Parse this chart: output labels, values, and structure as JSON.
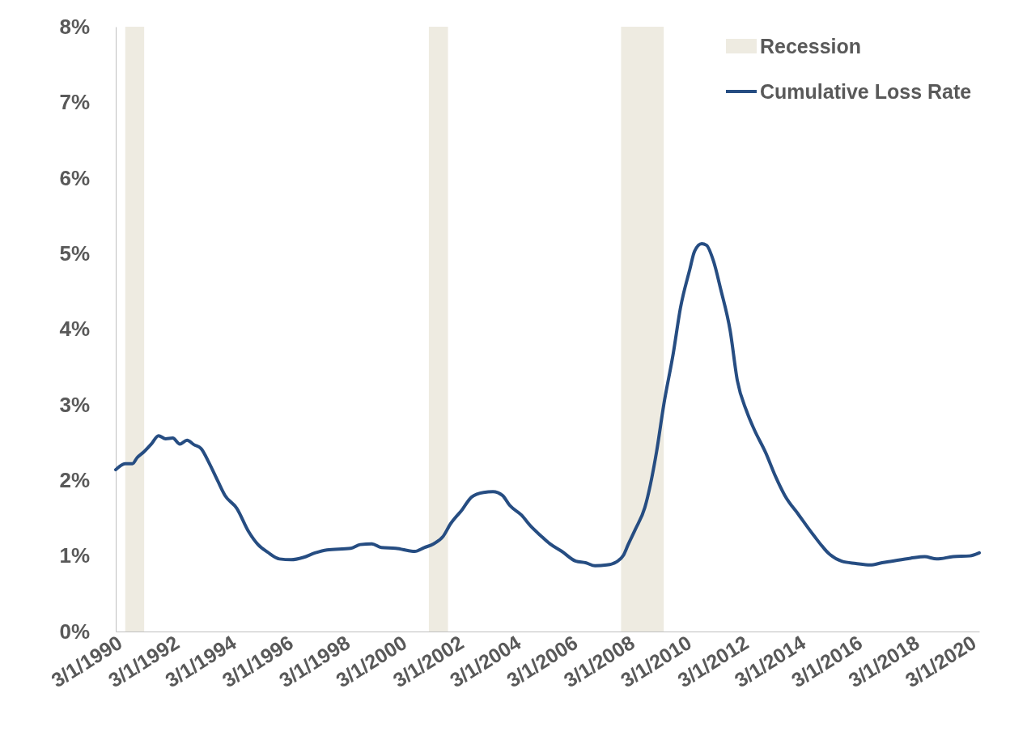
{
  "chart_data": {
    "type": "line",
    "legend": "top right",
    "grid": false,
    "xlim": [
      "1990-03-01",
      "2020-07-01"
    ],
    "xticks": [
      {
        "value": "1990-03-01",
        "label": "3/1/1990"
      },
      {
        "value": "1992-03-01",
        "label": "3/1/1992"
      },
      {
        "value": "1994-03-01",
        "label": "3/1/1994"
      },
      {
        "value": "1996-03-01",
        "label": "3/1/1996"
      },
      {
        "value": "1998-03-01",
        "label": "3/1/1998"
      },
      {
        "value": "2000-03-01",
        "label": "3/1/2000"
      },
      {
        "value": "2002-03-01",
        "label": "3/1/2002"
      },
      {
        "value": "2004-03-01",
        "label": "3/1/2004"
      },
      {
        "value": "2006-03-01",
        "label": "3/1/2006"
      },
      {
        "value": "2008-03-01",
        "label": "3/1/2008"
      },
      {
        "value": "2010-03-01",
        "label": "3/1/2010"
      },
      {
        "value": "2012-03-01",
        "label": "3/1/2012"
      },
      {
        "value": "2014-03-01",
        "label": "3/1/2014"
      },
      {
        "value": "2016-03-01",
        "label": "3/1/2016"
      },
      {
        "value": "2018-03-01",
        "label": "3/1/2018"
      },
      {
        "value": "2020-03-01",
        "label": "3/1/2020"
      }
    ],
    "ylim": [
      0,
      8
    ],
    "yticks": [
      {
        "value": 0,
        "label": "0%"
      },
      {
        "value": 1,
        "label": "1%"
      },
      {
        "value": 2,
        "label": "2%"
      },
      {
        "value": 3,
        "label": "3%"
      },
      {
        "value": 4,
        "label": "4%"
      },
      {
        "value": 5,
        "label": "5%"
      },
      {
        "value": 6,
        "label": "6%"
      },
      {
        "value": 7,
        "label": "7%"
      },
      {
        "value": 8,
        "label": "8%"
      }
    ],
    "x": [
      "1990-03",
      "1990-07",
      "1990-10",
      "1990-12",
      "1991-03",
      "1991-06",
      "1991-09",
      "1991-12",
      "1992-03",
      "1992-06",
      "1992-09",
      "1992-12",
      "1993-03",
      "1993-06",
      "1993-10",
      "1994-01",
      "1994-06",
      "1994-11",
      "1995-03",
      "1995-07",
      "1995-12",
      "1996-05",
      "1996-10",
      "1997-03",
      "1997-08",
      "1998-06",
      "1998-10",
      "1999-03",
      "1999-07",
      "2000-01",
      "2000-09",
      "2001-01",
      "2001-05",
      "2001-09",
      "2001-12",
      "2002-05",
      "2002-09",
      "2003-02",
      "2003-06",
      "2003-10",
      "2004-01",
      "2004-06",
      "2004-10",
      "2005-02",
      "2005-06",
      "2005-11",
      "2006-05",
      "2006-09",
      "2007-01",
      "2007-06",
      "2007-10",
      "2008-01",
      "2008-03",
      "2008-06",
      "2008-10",
      "2009-03",
      "2009-06",
      "2009-10",
      "2010-01",
      "2010-05",
      "2010-07",
      "2010-10",
      "2010-12",
      "2011-03",
      "2011-06",
      "2011-10",
      "2012-01",
      "2012-05",
      "2012-08",
      "2013-01",
      "2013-05",
      "2013-09",
      "2014-03",
      "2014-09",
      "2015-04",
      "2015-09",
      "2016-03",
      "2016-09",
      "2017-02",
      "2017-06",
      "2018-02",
      "2018-08",
      "2019-01",
      "2019-08",
      "2020-03",
      "2020-07"
    ],
    "series": [
      {
        "name": "Recession",
        "type": "area",
        "color": "#eeebe1",
        "x": [
          "1990-07",
          "1990-07",
          "1991-03",
          "1991-03",
          "2001-03",
          "2001-03",
          "2001-11",
          "2001-11",
          "2007-12",
          "2007-12",
          "2009-06",
          "2009-06"
        ],
        "values": [
          0,
          8,
          8,
          0,
          0,
          8,
          8,
          0,
          0,
          8,
          8,
          0
        ]
      },
      {
        "name": "Cumulative Loss Rate",
        "color": "#264d82",
        "values": [
          2.14,
          2.22,
          2.22,
          2.3,
          2.38,
          2.48,
          2.59,
          2.55,
          2.56,
          2.48,
          2.53,
          2.47,
          2.42,
          2.25,
          1.99,
          1.8,
          1.63,
          1.32,
          1.15,
          1.05,
          0.96,
          0.95,
          0.98,
          1.04,
          1.08,
          1.1,
          1.15,
          1.16,
          1.11,
          1.1,
          1.06,
          1.11,
          1.16,
          1.26,
          1.42,
          1.61,
          1.78,
          1.84,
          1.85,
          1.8,
          1.67,
          1.54,
          1.39,
          1.27,
          1.16,
          1.06,
          0.93,
          0.91,
          0.87,
          0.88,
          0.92,
          1.01,
          1.15,
          1.35,
          1.64,
          2.38,
          3.0,
          3.68,
          4.28,
          4.79,
          5.03,
          5.13,
          5.11,
          4.9,
          4.53,
          3.98,
          3.32,
          2.91,
          2.68,
          2.36,
          2.06,
          1.8,
          1.54,
          1.28,
          1.02,
          0.93,
          0.9,
          0.88,
          0.91,
          0.93,
          0.97,
          0.99,
          0.96,
          0.99,
          1.0,
          1.04
        ]
      }
    ]
  }
}
